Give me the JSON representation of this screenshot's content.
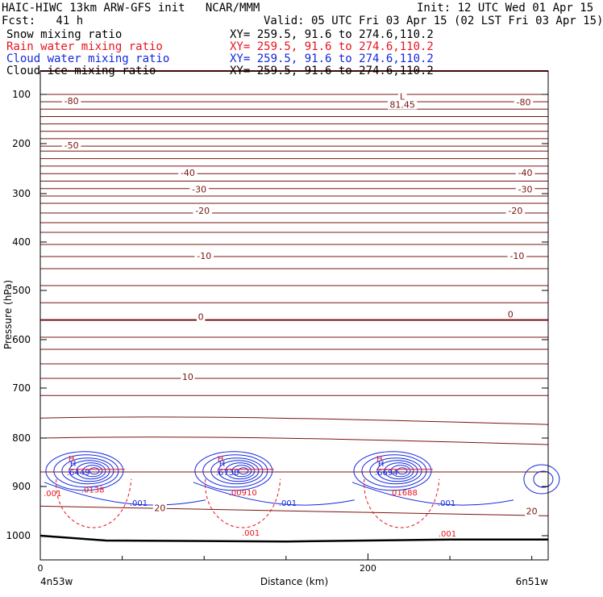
{
  "header": {
    "title_left": "HAIC-HIWC 13km ARW-GFS init   NCAR/MMM",
    "init": "Init: 12 UTC Wed 01 Apr 15",
    "fcst": "Fcst:   41 h",
    "valid": "Valid: 05 UTC Fri 03 Apr 15 (02 LST Fri 03 Apr 15)",
    "fields": [
      {
        "label": "Snow mixing ratio",
        "xy": "XY= 259.5, 91.6 to 274.6,110.2",
        "color": "#000000"
      },
      {
        "label": "Rain water mixing ratio",
        "xy": "XY= 259.5, 91.6 to 274.6,110.2",
        "color": "#e8141e"
      },
      {
        "label": "Cloud water mixing ratio",
        "xy": "XY= 259.5, 91.6 to 274.6,110.2",
        "color": "#1428dc"
      },
      {
        "label": "Cloud ice mixing ratio",
        "xy": "XY= 259.5, 91.6 to 274.6,110.2",
        "color": "#000000"
      }
    ]
  },
  "chart_data": {
    "type": "line",
    "xlabel": "Distance (km)",
    "ylabel": "Pressure (hPa)",
    "xlim": [
      0,
      310
    ],
    "ylim": [
      1050,
      88
    ],
    "x_ticks": [
      0,
      200
    ],
    "x_minor_ticks": [
      50,
      100,
      150,
      250,
      300
    ],
    "y_ticks": [
      100,
      200,
      300,
      400,
      500,
      600,
      700,
      800,
      900,
      1000
    ],
    "x_endpoints": {
      "left": "4n53w",
      "right": "6n51w"
    },
    "temperature_color": "#7a1410",
    "isotherm_pressures": [
      88,
      100,
      115,
      130,
      145,
      160,
      175,
      190,
      205,
      215,
      230,
      245,
      260,
      275,
      290,
      305,
      320,
      340,
      360,
      380,
      405,
      430,
      455,
      490,
      525,
      560,
      595,
      620,
      650,
      680,
      715,
      760,
      800,
      870,
      940
    ],
    "bold_isotherm_pressures": [
      88,
      560
    ],
    "temperature_labels": [
      {
        "text": "-80",
        "x": 19,
        "p": 115
      },
      {
        "text": "-80",
        "x": 295,
        "p": 117
      },
      {
        "text": "-50",
        "x": 19,
        "p": 205
      },
      {
        "text": "-40",
        "x": 90,
        "p": 260
      },
      {
        "text": "-40",
        "x": 296,
        "p": 260
      },
      {
        "text": "-30",
        "x": 97,
        "p": 293
      },
      {
        "text": "-30",
        "x": 296,
        "p": 293
      },
      {
        "text": "-20",
        "x": 99,
        "p": 337
      },
      {
        "text": "-20",
        "x": 290,
        "p": 337
      },
      {
        "text": "-10",
        "x": 100,
        "p": 430
      },
      {
        "text": "-10",
        "x": 291,
        "p": 430
      },
      {
        "text": "0",
        "x": 98,
        "p": 555
      },
      {
        "text": "0",
        "x": 287,
        "p": 550
      },
      {
        "text": "10",
        "x": 90,
        "p": 678
      },
      {
        "text": "20",
        "x": 73,
        "p": 945
      },
      {
        "text": "20",
        "x": 300,
        "p": 952
      }
    ],
    "extrema_labels": [
      {
        "text": "L",
        "x": 221,
        "p": 106,
        "color": "#7a1410"
      },
      {
        "text": "81.45",
        "x": 221,
        "p": 122,
        "color": "#7a1410"
      }
    ],
    "cloud_water": {
      "color": "#1428dc",
      "centers": [
        {
          "x": 27,
          "p": 868,
          "max": ".6449",
          "low_label": ".001"
        },
        {
          "x": 118,
          "p": 868,
          "max": ".6738",
          "low_label": ".001"
        },
        {
          "x": 215,
          "p": 868,
          "max": ".6694",
          "low_label": ".001"
        }
      ]
    },
    "rain_water": {
      "color": "#e8141e",
      "labels": [
        {
          "text": ".0138",
          "x": 25,
          "p": 912
        },
        {
          "text": ".001",
          "x": 2,
          "p": 920
        },
        {
          "text": ".00910",
          "x": 115,
          "p": 918
        },
        {
          "text": ".001",
          "x": 123,
          "p": 1000
        },
        {
          "text": ".01688",
          "x": 213,
          "p": 918
        },
        {
          "text": ".001",
          "x": 243,
          "p": 1002
        }
      ]
    }
  }
}
